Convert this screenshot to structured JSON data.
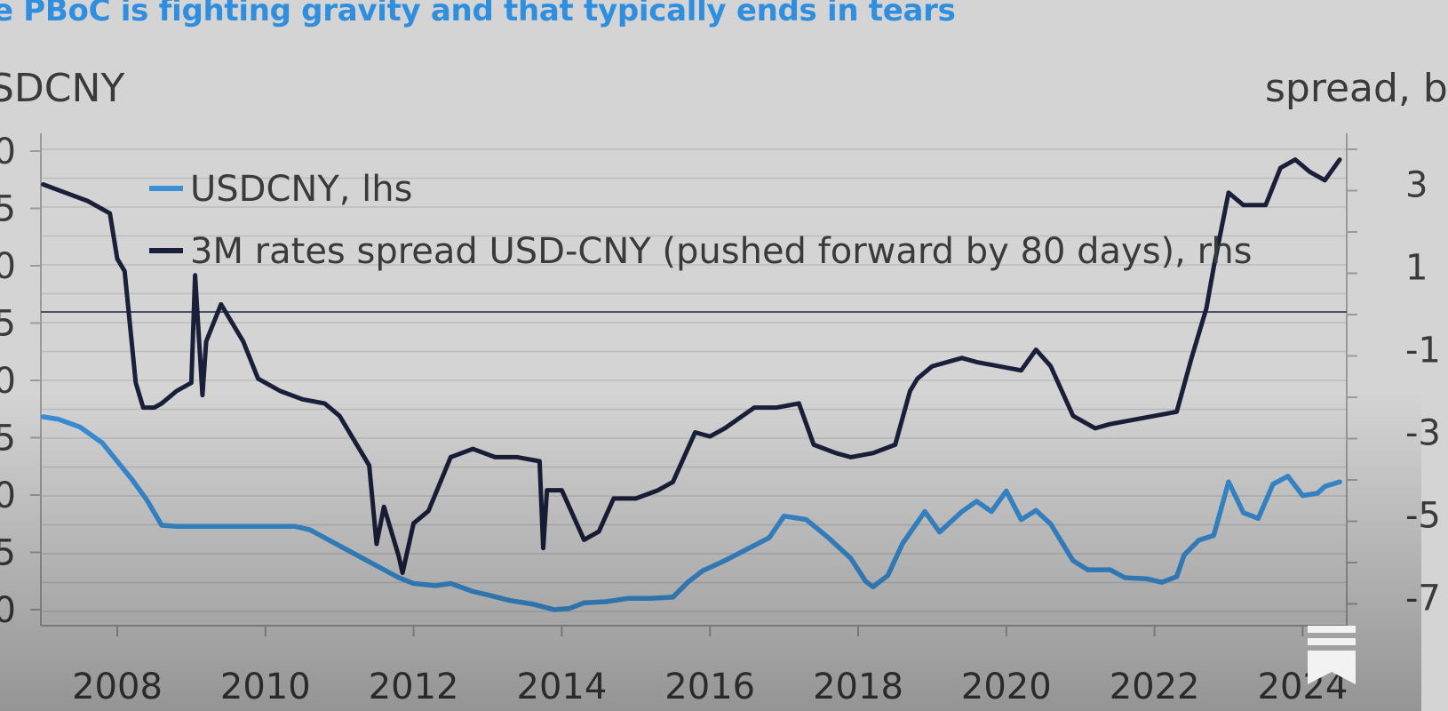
{
  "title": "e PBoC is fighting gravity and that typically ends in tears",
  "chart_data": {
    "type": "line",
    "title": "e PBoC is fighting gravity and that typically ends in tears",
    "ylabel_left": "SDCNY",
    "ylabel_right": "spread, b",
    "x_ticks": [
      "2008",
      "2010",
      "2012",
      "2014",
      "2016",
      "2018",
      "2020",
      "2022",
      "2024"
    ],
    "y_left_ticks": [
      "0",
      "5",
      "0",
      "5",
      "0",
      "5",
      "0",
      "5",
      "0"
    ],
    "y_right_ticks": [
      "3",
      "1",
      "-1",
      "-3",
      "-5",
      "-7"
    ],
    "legend_position": "top-left",
    "grid": true,
    "series": [
      {
        "name": "USDCNY, lhs",
        "color": "#3a8fd6",
        "axis": "left",
        "x": [
          2007.0,
          2007.2,
          2007.5,
          2007.8,
          2008.0,
          2008.2,
          2008.4,
          2008.6,
          2008.8,
          2009.0,
          2009.5,
          2010.0,
          2010.4,
          2010.6,
          2011.0,
          2011.4,
          2011.8,
          2012.0,
          2012.3,
          2012.5,
          2012.8,
          2013.0,
          2013.3,
          2013.6,
          2013.9,
          2014.1,
          2014.3,
          2014.6,
          2014.9,
          2015.2,
          2015.5,
          2015.7,
          2015.9,
          2016.2,
          2016.5,
          2016.8,
          2017.0,
          2017.3,
          2017.6,
          2017.9,
          2018.1,
          2018.2,
          2018.4,
          2018.6,
          2018.9,
          2019.1,
          2019.4,
          2019.6,
          2019.8,
          2020.0,
          2020.2,
          2020.4,
          2020.6,
          2020.9,
          2021.1,
          2021.4,
          2021.6,
          2021.9,
          2022.1,
          2022.3,
          2022.4,
          2022.6,
          2022.8,
          2023.0,
          2023.2,
          2023.4,
          2023.6,
          2023.8,
          2024.0,
          2024.2,
          2024.3,
          2024.5
        ],
        "y": [
          7.79,
          7.77,
          7.7,
          7.56,
          7.4,
          7.24,
          7.06,
          6.84,
          6.83,
          6.83,
          6.83,
          6.83,
          6.83,
          6.8,
          6.66,
          6.52,
          6.38,
          6.33,
          6.31,
          6.33,
          6.26,
          6.23,
          6.18,
          6.15,
          6.1,
          6.11,
          6.16,
          6.17,
          6.2,
          6.2,
          6.21,
          6.34,
          6.44,
          6.53,
          6.63,
          6.73,
          6.92,
          6.89,
          6.73,
          6.55,
          6.35,
          6.3,
          6.4,
          6.68,
          6.96,
          6.78,
          6.96,
          7.05,
          6.96,
          7.14,
          6.89,
          6.97,
          6.85,
          6.53,
          6.45,
          6.45,
          6.38,
          6.37,
          6.34,
          6.39,
          6.58,
          6.71,
          6.75,
          7.22,
          6.95,
          6.9,
          7.2,
          7.27,
          7.1,
          7.12,
          7.18,
          7.22
        ]
      },
      {
        "name": "3M rates spread USD-CNY (pushed forward by 80 days), rhs",
        "color": "#1a1f3a",
        "axis": "right",
        "x": [
          2007.0,
          2007.3,
          2007.6,
          2007.9,
          2008.0,
          2008.1,
          2008.25,
          2008.35,
          2008.5,
          2008.6,
          2008.8,
          2009.0,
          2009.05,
          2009.15,
          2009.2,
          2009.4,
          2009.7,
          2009.9,
          2010.2,
          2010.5,
          2010.8,
          2011.0,
          2011.2,
          2011.4,
          2011.5,
          2011.6,
          2011.8,
          2011.85,
          2012.0,
          2012.2,
          2012.5,
          2012.8,
          2013.1,
          2013.4,
          2013.7,
          2013.75,
          2013.8,
          2014.0,
          2014.3,
          2014.5,
          2014.7,
          2015.0,
          2015.3,
          2015.5,
          2015.8,
          2016.0,
          2016.2,
          2016.6,
          2016.9,
          2017.2,
          2017.4,
          2017.7,
          2017.9,
          2018.2,
          2018.5,
          2018.7,
          2018.8,
          2019.0,
          2019.4,
          2019.6,
          2019.9,
          2020.2,
          2020.4,
          2020.6,
          2020.9,
          2021.2,
          2021.4,
          2021.7,
          2022.0,
          2022.3,
          2022.5,
          2022.7,
          2022.8,
          2023.0,
          2023.2,
          2023.5,
          2023.7,
          2023.9,
          2024.1,
          2024.3,
          2024.5
        ],
        "y": [
          3.0,
          2.8,
          2.6,
          2.3,
          1.2,
          0.9,
          -1.8,
          -2.4,
          -2.4,
          -2.3,
          -2.0,
          -1.8,
          0.8,
          -2.1,
          -0.8,
          0.1,
          -0.8,
          -1.7,
          -2.0,
          -2.2,
          -2.3,
          -2.6,
          -3.2,
          -3.8,
          -5.7,
          -4.8,
          -6.0,
          -6.4,
          -5.2,
          -4.9,
          -3.6,
          -3.4,
          -3.6,
          -3.6,
          -3.7,
          -5.8,
          -4.4,
          -4.4,
          -5.6,
          -5.4,
          -4.6,
          -4.6,
          -4.4,
          -4.2,
          -3.0,
          -3.1,
          -2.9,
          -2.4,
          -2.4,
          -2.3,
          -3.3,
          -3.5,
          -3.6,
          -3.5,
          -3.3,
          -2.0,
          -1.7,
          -1.4,
          -1.2,
          -1.3,
          -1.4,
          -1.5,
          -1.0,
          -1.4,
          -2.6,
          -2.9,
          -2.8,
          -2.7,
          -2.6,
          -2.5,
          -1.2,
          0.0,
          1.0,
          2.8,
          2.5,
          2.5,
          3.4,
          3.6,
          3.3,
          3.1,
          3.6
        ]
      }
    ]
  },
  "icons": {
    "bookmark": "bookmark-icon"
  }
}
